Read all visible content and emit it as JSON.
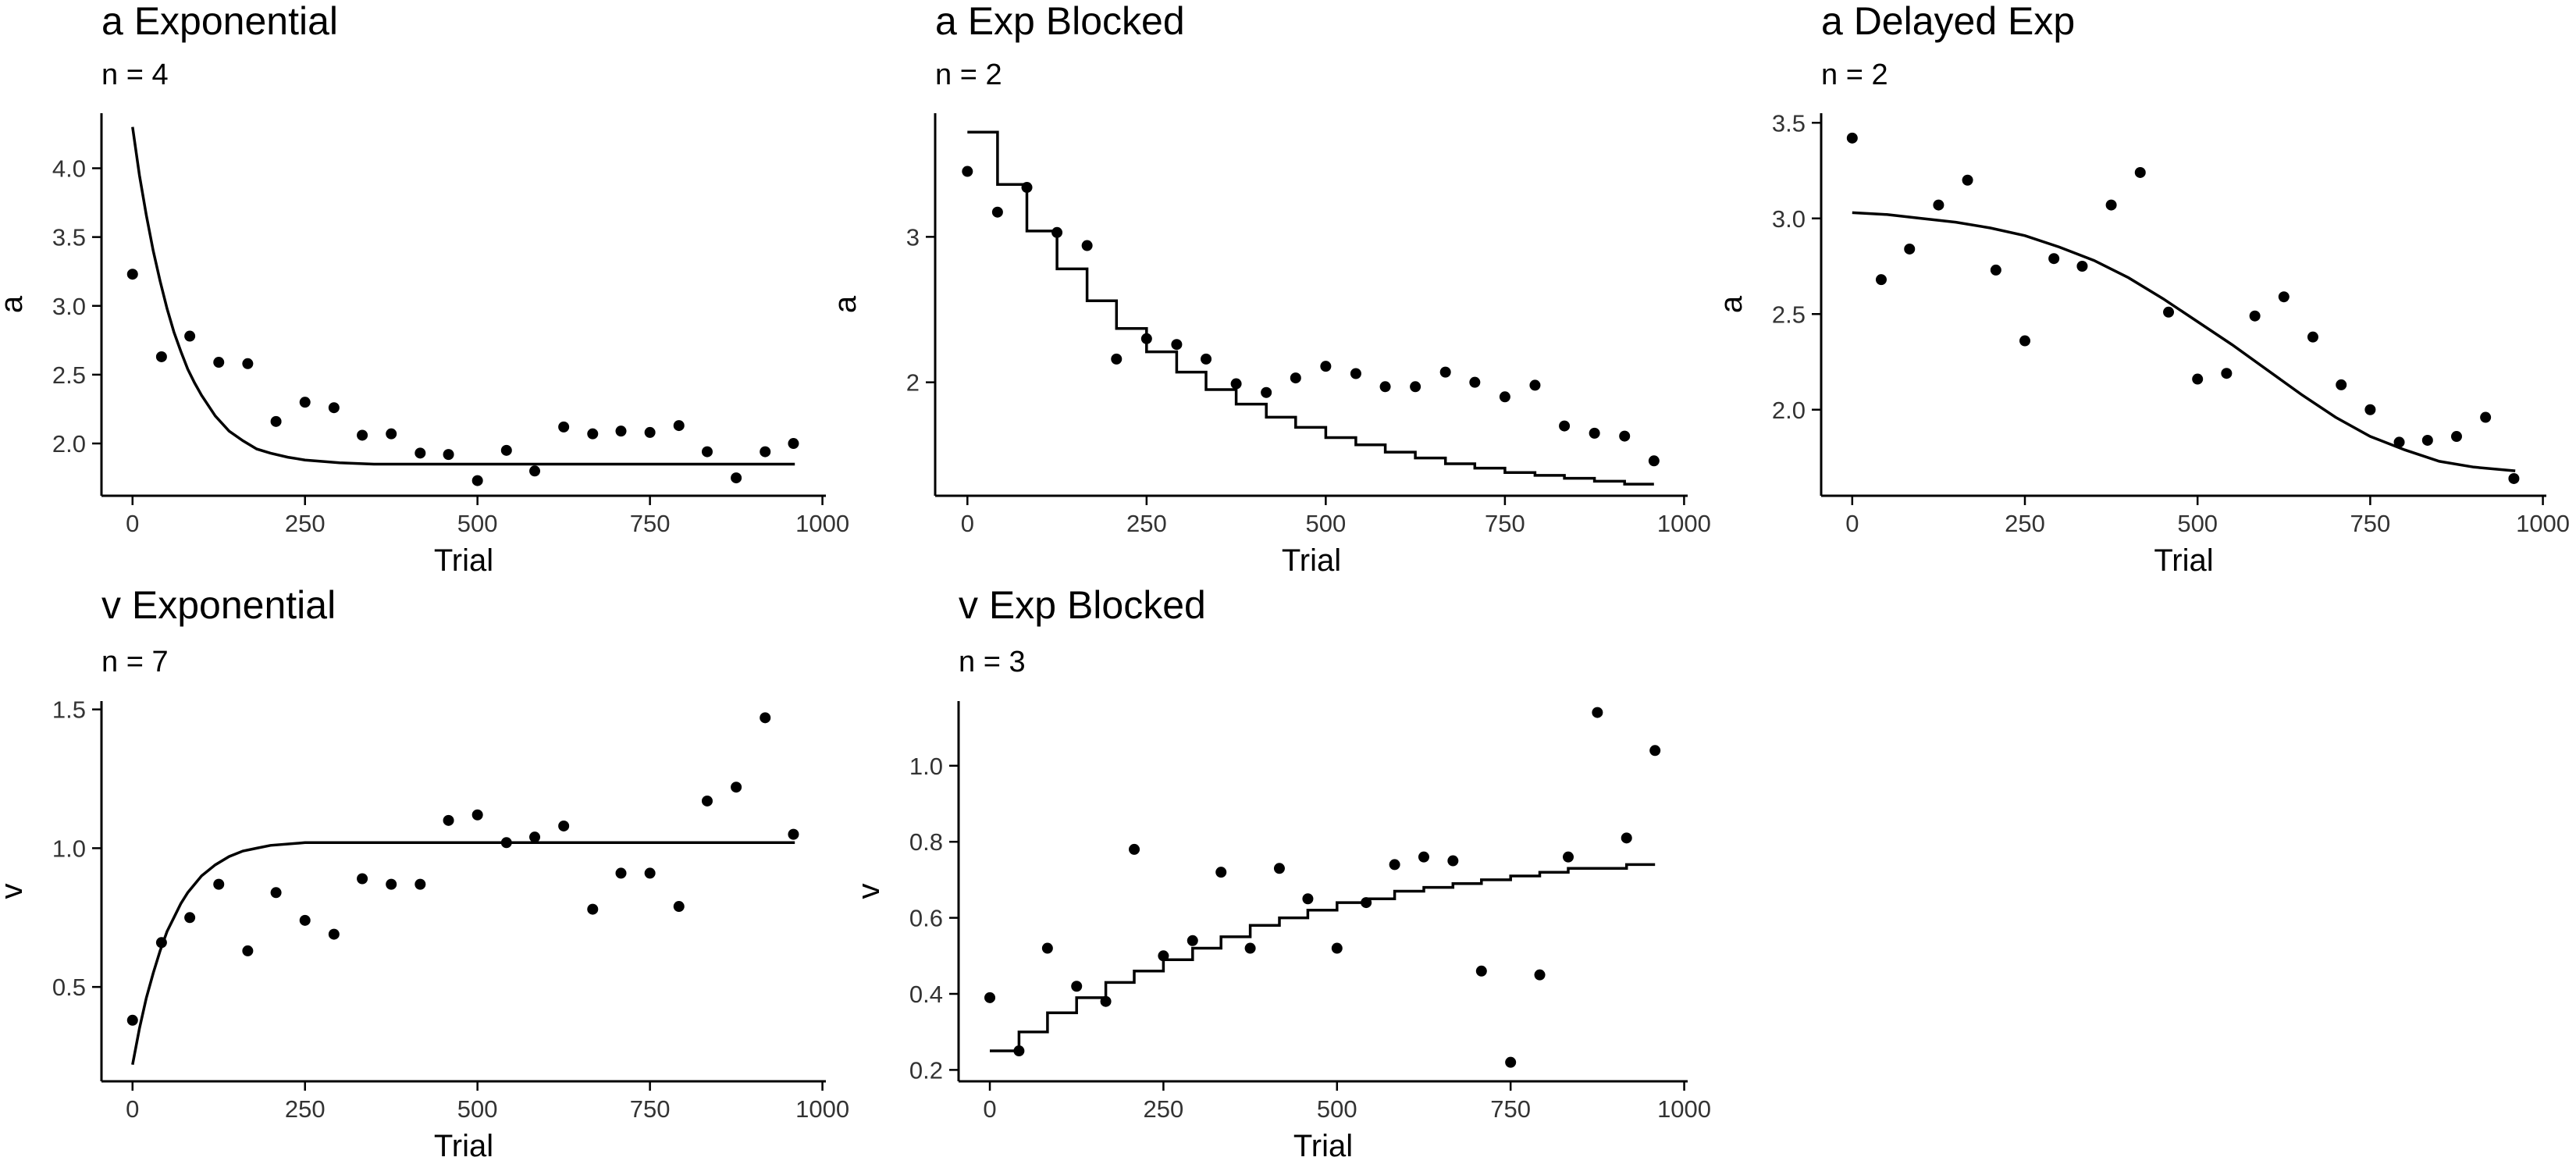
{
  "chart_data": [
    {
      "type": "scatter",
      "title": "a Exponential",
      "subtitle": "n = 4",
      "xlabel": "Trial",
      "ylabel": "a",
      "xlim": [
        -45,
        1005
      ],
      "ylim": [
        1.62,
        4.4
      ],
      "xticks": [
        0,
        250,
        500,
        750,
        1000
      ],
      "yticks": [
        2.0,
        2.5,
        3.0,
        3.5,
        4.0
      ],
      "ytick_labels": [
        "2.0",
        "2.5",
        "3.0",
        "3.5",
        "4.0"
      ],
      "grid": false,
      "legend": "none",
      "points": [
        [
          0,
          3.23
        ],
        [
          42,
          2.63
        ],
        [
          83,
          2.78
        ],
        [
          125,
          2.59
        ],
        [
          167,
          2.58
        ],
        [
          208,
          2.16
        ],
        [
          250,
          2.3
        ],
        [
          292,
          2.26
        ],
        [
          333,
          2.06
        ],
        [
          375,
          2.07
        ],
        [
          417,
          1.93
        ],
        [
          458,
          1.92
        ],
        [
          500,
          1.73
        ],
        [
          542,
          1.95
        ],
        [
          583,
          1.8
        ],
        [
          625,
          2.12
        ],
        [
          667,
          2.07
        ],
        [
          708,
          2.09
        ],
        [
          750,
          2.08
        ],
        [
          792,
          2.13
        ],
        [
          833,
          1.94
        ],
        [
          875,
          1.75
        ],
        [
          917,
          1.94
        ],
        [
          958,
          2.0
        ]
      ],
      "fitted_line": [
        [
          0,
          4.3
        ],
        [
          10,
          3.95
        ],
        [
          20,
          3.66
        ],
        [
          30,
          3.4
        ],
        [
          40,
          3.18
        ],
        [
          50,
          2.98
        ],
        [
          60,
          2.81
        ],
        [
          70,
          2.67
        ],
        [
          80,
          2.54
        ],
        [
          90,
          2.44
        ],
        [
          100,
          2.35
        ],
        [
          120,
          2.2
        ],
        [
          140,
          2.09
        ],
        [
          160,
          2.02
        ],
        [
          180,
          1.96
        ],
        [
          200,
          1.93
        ],
        [
          225,
          1.9
        ],
        [
          250,
          1.88
        ],
        [
          300,
          1.86
        ],
        [
          350,
          1.85
        ],
        [
          400,
          1.85
        ],
        [
          500,
          1.85
        ],
        [
          600,
          1.85
        ],
        [
          700,
          1.85
        ],
        [
          800,
          1.85
        ],
        [
          960,
          1.85
        ]
      ]
    },
    {
      "type": "scatter",
      "title": "a Exp Blocked",
      "subtitle": "n = 2",
      "xlabel": "Trial",
      "ylabel": "a",
      "xlim": [
        -45,
        1005
      ],
      "ylim": [
        1.22,
        3.85
      ],
      "xticks": [
        0,
        250,
        500,
        750,
        1000
      ],
      "yticks": [
        2,
        3
      ],
      "ytick_labels": [
        "2",
        "3"
      ],
      "grid": false,
      "legend": "none",
      "points": [
        [
          0,
          3.45
        ],
        [
          42,
          3.17
        ],
        [
          83,
          3.34
        ],
        [
          125,
          3.03
        ],
        [
          167,
          2.94
        ],
        [
          208,
          2.16
        ],
        [
          250,
          2.3
        ],
        [
          292,
          2.26
        ],
        [
          333,
          2.16
        ],
        [
          375,
          1.99
        ],
        [
          417,
          1.93
        ],
        [
          458,
          2.03
        ],
        [
          500,
          2.11
        ],
        [
          542,
          2.06
        ],
        [
          583,
          1.97
        ],
        [
          625,
          1.97
        ],
        [
          667,
          2.07
        ],
        [
          708,
          2.0
        ],
        [
          750,
          1.9
        ],
        [
          792,
          1.98
        ],
        [
          833,
          1.7
        ],
        [
          875,
          1.65
        ],
        [
          917,
          1.63
        ],
        [
          958,
          1.46
        ]
      ],
      "step_line": [
        [
          0,
          3.72
        ],
        [
          42,
          3.36
        ],
        [
          83,
          3.04
        ],
        [
          125,
          2.78
        ],
        [
          167,
          2.56
        ],
        [
          208,
          2.37
        ],
        [
          250,
          2.21
        ],
        [
          292,
          2.07
        ],
        [
          333,
          1.95
        ],
        [
          375,
          1.85
        ],
        [
          417,
          1.76
        ],
        [
          458,
          1.69
        ],
        [
          500,
          1.62
        ],
        [
          542,
          1.57
        ],
        [
          583,
          1.52
        ],
        [
          625,
          1.48
        ],
        [
          667,
          1.44
        ],
        [
          708,
          1.41
        ],
        [
          750,
          1.38
        ],
        [
          792,
          1.36
        ],
        [
          833,
          1.34
        ],
        [
          875,
          1.32
        ],
        [
          917,
          1.3
        ],
        [
          958,
          1.3
        ]
      ]
    },
    {
      "type": "scatter",
      "title": "a Delayed Exp",
      "subtitle": "n = 2",
      "xlabel": "Trial",
      "ylabel": "a",
      "xlim": [
        -45,
        1005
      ],
      "ylim": [
        1.55,
        3.55
      ],
      "xticks": [
        0,
        250,
        500,
        750,
        1000
      ],
      "yticks": [
        2.0,
        2.5,
        3.0,
        3.5
      ],
      "ytick_labels": [
        "2.0",
        "2.5",
        "3.0",
        "3.5"
      ],
      "grid": false,
      "legend": "none",
      "points": [
        [
          0,
          3.42
        ],
        [
          42,
          2.68
        ],
        [
          83,
          2.84
        ],
        [
          125,
          3.07
        ],
        [
          167,
          3.2
        ],
        [
          208,
          2.73
        ],
        [
          250,
          2.36
        ],
        [
          292,
          2.79
        ],
        [
          333,
          2.75
        ],
        [
          375,
          3.07
        ],
        [
          417,
          3.24
        ],
        [
          458,
          2.51
        ],
        [
          500,
          2.16
        ],
        [
          542,
          2.19
        ],
        [
          583,
          2.49
        ],
        [
          625,
          2.59
        ],
        [
          667,
          2.38
        ],
        [
          708,
          2.13
        ],
        [
          750,
          2.0
        ],
        [
          792,
          1.83
        ],
        [
          833,
          1.84
        ],
        [
          875,
          1.86
        ],
        [
          917,
          1.96
        ],
        [
          958,
          1.64
        ]
      ],
      "fitted_line": [
        [
          0,
          3.03
        ],
        [
          50,
          3.02
        ],
        [
          100,
          3.0
        ],
        [
          150,
          2.98
        ],
        [
          200,
          2.95
        ],
        [
          250,
          2.91
        ],
        [
          300,
          2.85
        ],
        [
          350,
          2.78
        ],
        [
          400,
          2.69
        ],
        [
          450,
          2.58
        ],
        [
          500,
          2.46
        ],
        [
          550,
          2.34
        ],
        [
          600,
          2.21
        ],
        [
          650,
          2.08
        ],
        [
          700,
          1.96
        ],
        [
          750,
          1.86
        ],
        [
          800,
          1.79
        ],
        [
          850,
          1.73
        ],
        [
          900,
          1.7
        ],
        [
          960,
          1.68
        ]
      ]
    },
    {
      "type": "scatter",
      "title": "v Exponential",
      "subtitle": "n = 7",
      "xlabel": "Trial",
      "ylabel": "v",
      "xlim": [
        -45,
        1005
      ],
      "ylim": [
        0.16,
        1.53
      ],
      "xticks": [
        0,
        250,
        500,
        750,
        1000
      ],
      "yticks": [
        0.5,
        1.0,
        1.5
      ],
      "ytick_labels": [
        "0.5",
        "1.0",
        "1.5"
      ],
      "grid": false,
      "legend": "none",
      "points": [
        [
          0,
          0.38
        ],
        [
          42,
          0.66
        ],
        [
          83,
          0.75
        ],
        [
          125,
          0.87
        ],
        [
          167,
          0.63
        ],
        [
          208,
          0.84
        ],
        [
          250,
          0.74
        ],
        [
          292,
          0.69
        ],
        [
          333,
          0.89
        ],
        [
          375,
          0.87
        ],
        [
          417,
          0.87
        ],
        [
          458,
          1.1
        ],
        [
          500,
          1.12
        ],
        [
          542,
          1.02
        ],
        [
          583,
          1.04
        ],
        [
          625,
          1.08
        ],
        [
          667,
          0.78
        ],
        [
          708,
          0.91
        ],
        [
          750,
          0.91
        ],
        [
          792,
          0.79
        ],
        [
          833,
          1.17
        ],
        [
          875,
          1.22
        ],
        [
          917,
          1.47
        ],
        [
          958,
          1.05
        ]
      ],
      "fitted_line": [
        [
          0,
          0.22
        ],
        [
          10,
          0.35
        ],
        [
          20,
          0.46
        ],
        [
          30,
          0.55
        ],
        [
          40,
          0.63
        ],
        [
          50,
          0.7
        ],
        [
          60,
          0.75
        ],
        [
          70,
          0.8
        ],
        [
          80,
          0.84
        ],
        [
          90,
          0.87
        ],
        [
          100,
          0.9
        ],
        [
          120,
          0.94
        ],
        [
          140,
          0.97
        ],
        [
          160,
          0.99
        ],
        [
          180,
          1.0
        ],
        [
          200,
          1.01
        ],
        [
          250,
          1.02
        ],
        [
          300,
          1.02
        ],
        [
          400,
          1.02
        ],
        [
          500,
          1.02
        ],
        [
          600,
          1.02
        ],
        [
          700,
          1.02
        ],
        [
          800,
          1.02
        ],
        [
          960,
          1.02
        ]
      ]
    },
    {
      "type": "scatter",
      "title": "v Exp Blocked",
      "subtitle": "n = 3",
      "xlabel": "Trial",
      "ylabel": "v",
      "xlim": [
        -45,
        1005
      ],
      "ylim": [
        0.17,
        1.17
      ],
      "xticks": [
        0,
        250,
        500,
        750,
        1000
      ],
      "yticks": [
        0.2,
        0.4,
        0.6,
        0.8,
        1.0
      ],
      "ytick_labels": [
        "0.2",
        "0.4",
        "0.6",
        "0.8",
        "1.0"
      ],
      "grid": false,
      "legend": "none",
      "points": [
        [
          0,
          0.39
        ],
        [
          42,
          0.25
        ],
        [
          83,
          0.52
        ],
        [
          125,
          0.42
        ],
        [
          167,
          0.38
        ],
        [
          208,
          0.78
        ],
        [
          250,
          0.5
        ],
        [
          292,
          0.54
        ],
        [
          333,
          0.72
        ],
        [
          375,
          0.52
        ],
        [
          417,
          0.73
        ],
        [
          458,
          0.65
        ],
        [
          500,
          0.52
        ],
        [
          542,
          0.64
        ],
        [
          583,
          0.74
        ],
        [
          625,
          0.76
        ],
        [
          667,
          0.75
        ],
        [
          708,
          0.46
        ],
        [
          750,
          0.22
        ],
        [
          792,
          0.45
        ],
        [
          833,
          0.76
        ],
        [
          875,
          1.14
        ],
        [
          917,
          0.81
        ],
        [
          958,
          1.04
        ]
      ],
      "step_line": [
        [
          0,
          0.25
        ],
        [
          42,
          0.3
        ],
        [
          83,
          0.35
        ],
        [
          125,
          0.39
        ],
        [
          167,
          0.43
        ],
        [
          208,
          0.46
        ],
        [
          250,
          0.49
        ],
        [
          292,
          0.52
        ],
        [
          333,
          0.55
        ],
        [
          375,
          0.58
        ],
        [
          417,
          0.6
        ],
        [
          458,
          0.62
        ],
        [
          500,
          0.64
        ],
        [
          542,
          0.65
        ],
        [
          583,
          0.67
        ],
        [
          625,
          0.68
        ],
        [
          667,
          0.69
        ],
        [
          708,
          0.7
        ],
        [
          750,
          0.71
        ],
        [
          792,
          0.72
        ],
        [
          833,
          0.73
        ],
        [
          875,
          0.73
        ],
        [
          917,
          0.74
        ],
        [
          958,
          0.74
        ]
      ]
    }
  ]
}
